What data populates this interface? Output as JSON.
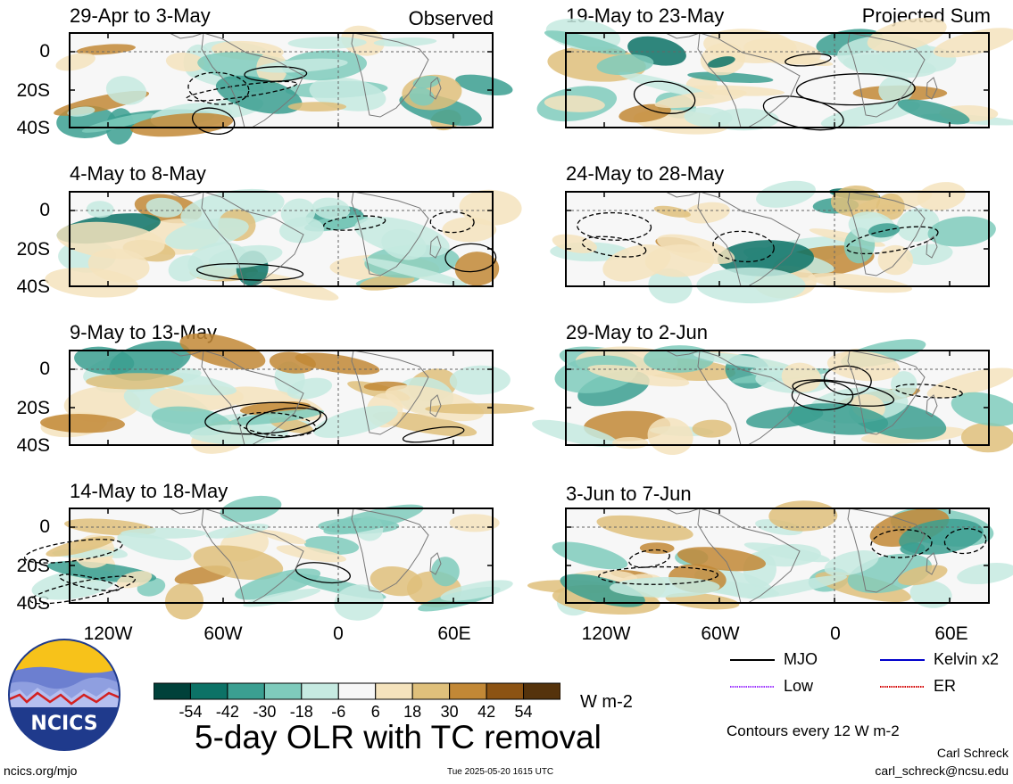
{
  "figure": {
    "title": "5-day OLR with TC removal",
    "units": "W m-2",
    "contour_note": "Contours every 12 W m-2",
    "author": "Carl Schreck",
    "email": "carl_schreck@ncsu.edu",
    "website": "ncics.org/mjo",
    "timestamp": "Tue 2025-05-20 1615 UTC",
    "logo_text": "NCICS"
  },
  "columns": {
    "left_label": "Observed",
    "right_label": "Projected Sum"
  },
  "panels": [
    {
      "title": "29-Apr to 3-May"
    },
    {
      "title": "4-May to 8-May"
    },
    {
      "title": "9-May to 13-May"
    },
    {
      "title": "14-May to 18-May"
    },
    {
      "title": "19-May to 23-May"
    },
    {
      "title": "24-May to 28-May"
    },
    {
      "title": "29-May to 2-Jun"
    },
    {
      "title": "3-Jun to 7-Jun"
    }
  ],
  "axes": {
    "y_ticks": [
      "0",
      "20S",
      "40S"
    ],
    "x_ticks": [
      "120W",
      "60W",
      "0",
      "60E"
    ]
  },
  "colorbar": {
    "labels": [
      "-54",
      "-42",
      "-30",
      "-18",
      "-6",
      "6",
      "18",
      "30",
      "42",
      "54"
    ],
    "colors": [
      "#00413a",
      "#0c7266",
      "#3b9f91",
      "#7fcbbc",
      "#c6eae1",
      "#f7f7f7",
      "#f5e3bd",
      "#dfc07b",
      "#c28836",
      "#8c5313",
      "#55330c"
    ]
  },
  "legend": [
    {
      "label": "MJO",
      "color": "#000000"
    },
    {
      "label": "Kelvin x2",
      "color": "#0000cc"
    },
    {
      "label": "Low",
      "color": "#9b30ff"
    },
    {
      "label": "ER",
      "color": "#d40000"
    }
  ]
}
